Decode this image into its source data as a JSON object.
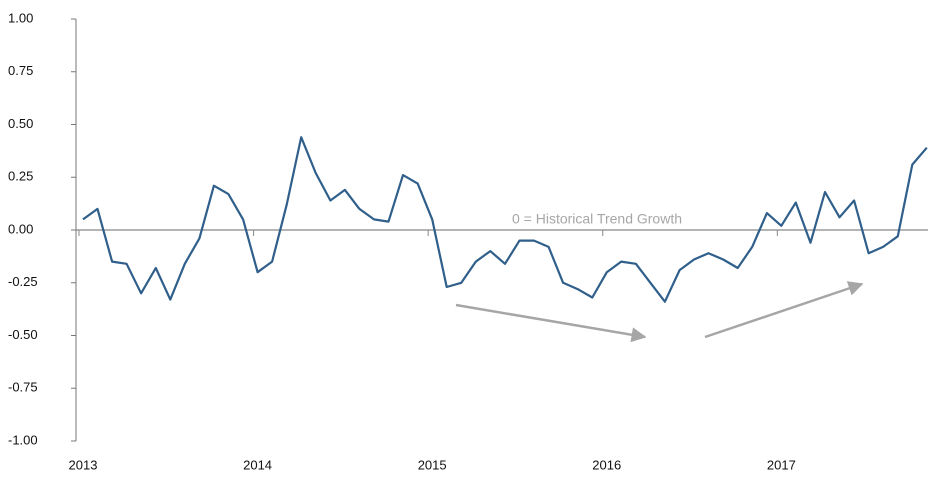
{
  "chart_data": {
    "type": "line",
    "annotations": [
      "0 = Historical Trend Growth"
    ],
    "x": [
      2013,
      2013.083,
      2013.167,
      2013.25,
      2013.333,
      2013.417,
      2013.5,
      2013.583,
      2013.667,
      2013.75,
      2013.833,
      2013.917,
      2014,
      2014.083,
      2014.167,
      2014.25,
      2014.333,
      2014.417,
      2014.5,
      2014.583,
      2014.667,
      2014.75,
      2014.833,
      2014.917,
      2015,
      2015.083,
      2015.167,
      2015.25,
      2015.333,
      2015.417,
      2015.5,
      2015.583,
      2015.667,
      2015.75,
      2015.833,
      2015.917,
      2016,
      2016.083,
      2016.167,
      2016.25,
      2016.333,
      2016.417,
      2016.5,
      2016.583,
      2016.667,
      2016.75,
      2016.833,
      2016.917,
      2017,
      2017.083,
      2017.167,
      2017.25,
      2017.333,
      2017.417,
      2017.5,
      2017.583,
      2017.667,
      2017.75,
      2017.833
    ],
    "series": [
      {
        "color": "#2f5f8a",
        "values": [
          0.05,
          0.1,
          -0.15,
          -0.16,
          -0.3,
          -0.18,
          -0.33,
          -0.16,
          -0.04,
          0.21,
          0.17,
          0.05,
          -0.2,
          -0.15,
          0.12,
          0.44,
          0.27,
          0.14,
          0.19,
          0.1,
          0.05,
          0.04,
          0.26,
          0.22,
          0.05,
          -0.27,
          -0.25,
          -0.15,
          -0.1,
          -0.16,
          -0.05,
          -0.05,
          -0.08,
          -0.25,
          -0.28,
          -0.32,
          -0.2,
          -0.15,
          -0.16,
          -0.25,
          -0.34,
          -0.19,
          -0.14,
          -0.11,
          -0.14,
          -0.18,
          -0.08,
          0.08,
          0.02,
          0.13,
          -0.06,
          0.18,
          0.06,
          0.14,
          -0.11,
          -0.08,
          -0.03,
          0.31,
          0.39
        ]
      }
    ],
    "xlim": [
      2012.96,
      2017.84
    ],
    "xticks": [
      2013,
      2014,
      2015,
      2016,
      2017
    ],
    "ylim": [
      -1,
      1
    ],
    "yticks": [
      {
        "value": -1,
        "label": "-1.00"
      },
      {
        "value": -0.75,
        "label": "-0.75"
      },
      {
        "value": -0.5,
        "label": "-0.50"
      },
      {
        "value": -0.25,
        "label": "-0.25"
      },
      {
        "value": 0,
        "label": "0.00"
      },
      {
        "value": 0.25,
        "label": "0.25"
      },
      {
        "value": 0.5,
        "label": "0.50"
      },
      {
        "value": 0.75,
        "label": "0.75"
      },
      {
        "value": 1,
        "label": "1.00"
      }
    ]
  }
}
